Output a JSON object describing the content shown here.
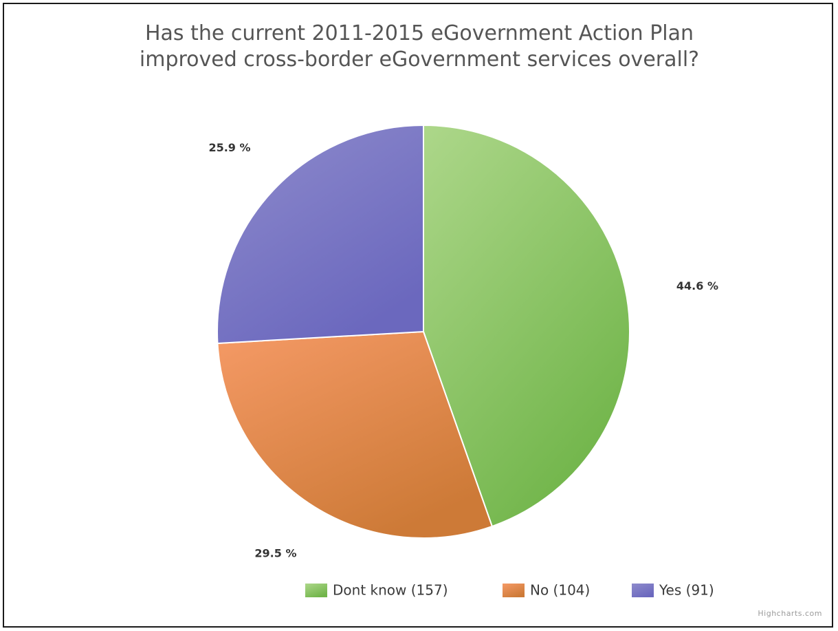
{
  "chart_data": {
    "type": "pie",
    "title": [
      "Has the current 2011-2015 eGovernment Action Plan",
      "improved cross-border eGovernment services overall?"
    ],
    "slices": [
      {
        "name": "Dont know",
        "count": 157,
        "legend_label": "Dont know (157)",
        "percent": 44.6,
        "data_label": "44.6 %",
        "color": "#8CCB62",
        "color_light": "#ADD78A",
        "color_dark": "#71B54A"
      },
      {
        "name": "No",
        "count": 104,
        "legend_label": "No (104)",
        "percent": 29.5,
        "data_label": "29.5 %",
        "color": "#EE8A4E",
        "color_light": "#F59A66",
        "color_dark": "#CD7A37"
      },
      {
        "name": "Yes",
        "count": 91,
        "legend_label": "Yes (91)",
        "percent": 25.9,
        "data_label": "25.9 %",
        "color": "#7E7CC6",
        "color_light": "#8E8BCC",
        "color_dark": "#6B68BE"
      }
    ],
    "legend_position": "bottom-center",
    "start_angle": "12 o'clock, clockwise"
  },
  "credits": "Highcharts.com"
}
